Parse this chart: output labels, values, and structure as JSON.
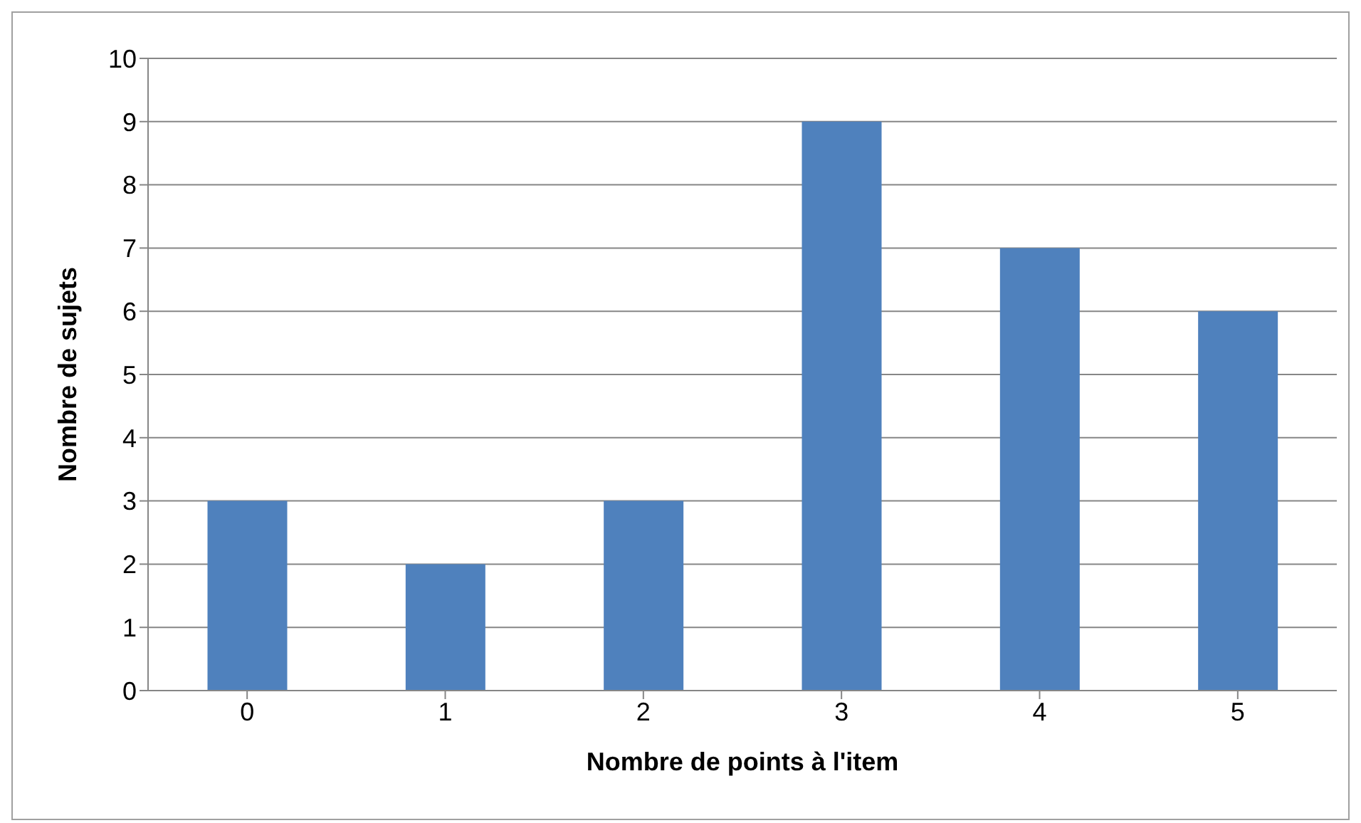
{
  "chart_data": {
    "type": "bar",
    "xlabel": "Nombre de points à l'item",
    "ylabel": "Nombre de sujets",
    "categories": [
      "0",
      "1",
      "2",
      "3",
      "4",
      "5"
    ],
    "values": [
      3,
      2,
      3,
      9,
      7,
      6
    ],
    "color": "#4f81bd",
    "ylim": [
      0,
      10
    ],
    "yticks": [
      0,
      1,
      2,
      3,
      4,
      5,
      6,
      7,
      8,
      9,
      10
    ],
    "grid": "y",
    "legend": false
  }
}
